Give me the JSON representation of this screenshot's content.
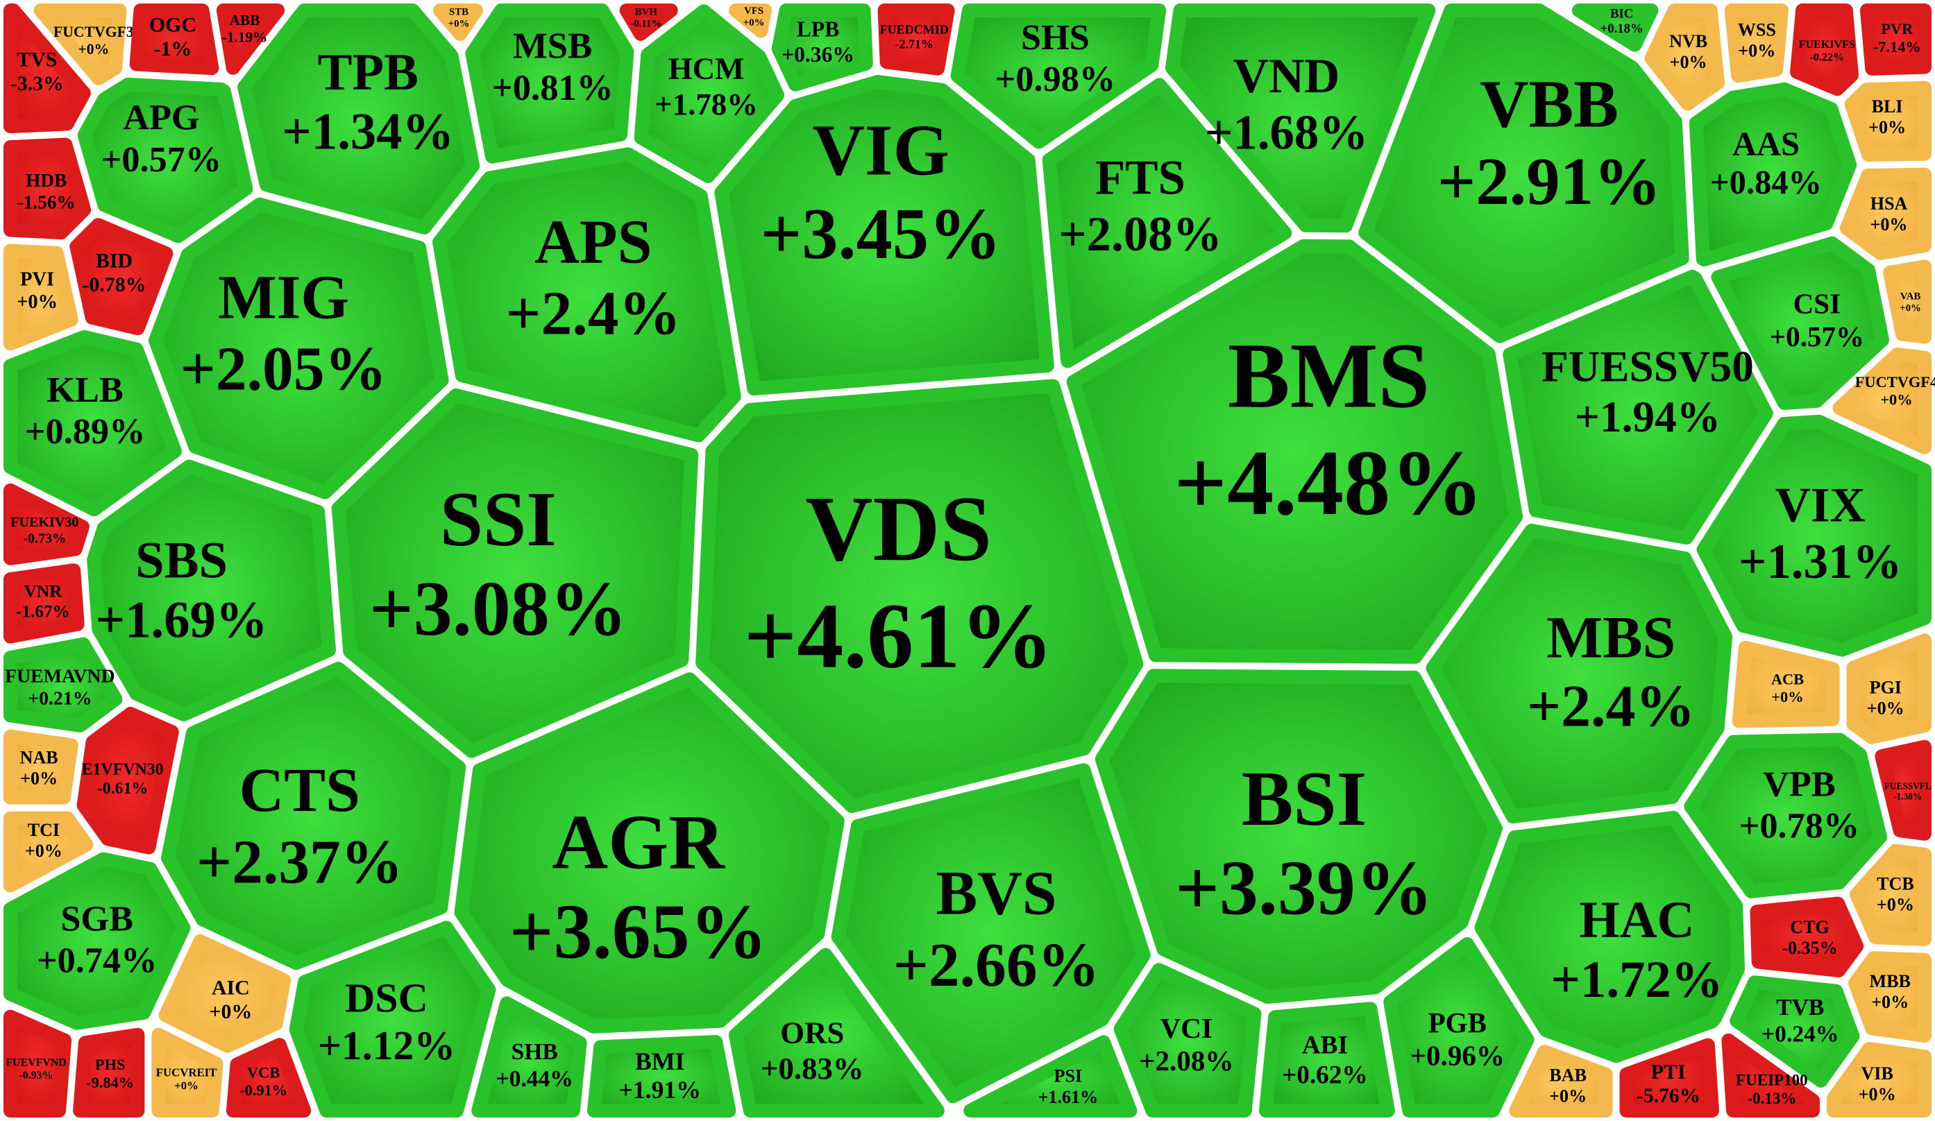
{
  "cells": [
    {
      "ticker": "VDS",
      "change": "+4.61%"
    },
    {
      "ticker": "BMS",
      "change": "+4.48%"
    },
    {
      "ticker": "SSI",
      "change": "+3.08%"
    },
    {
      "ticker": "AGR",
      "change": "+3.65%"
    },
    {
      "ticker": "VIG",
      "change": "+3.45%"
    },
    {
      "ticker": "BSI",
      "change": "+3.39%"
    },
    {
      "ticker": "APS",
      "change": "+2.4%"
    },
    {
      "ticker": "MIG",
      "change": "+2.05%"
    },
    {
      "ticker": "CTS",
      "change": "+2.37%"
    },
    {
      "ticker": "BVS",
      "change": "+2.66%"
    },
    {
      "ticker": "VBB",
      "change": "+2.91%"
    },
    {
      "ticker": "MBS",
      "change": "+2.4%"
    },
    {
      "ticker": "FTS",
      "change": "+2.08%"
    },
    {
      "ticker": "VND",
      "change": "+1.68%"
    },
    {
      "ticker": "TPB",
      "change": "+1.34%"
    },
    {
      "ticker": "SBS",
      "change": "+1.69%"
    },
    {
      "ticker": "FUESSV50",
      "change": "+1.94%"
    },
    {
      "ticker": "HAC",
      "change": "+1.72%"
    },
    {
      "ticker": "VIX",
      "change": "+1.31%"
    },
    {
      "ticker": "MSB",
      "change": "+0.81%"
    },
    {
      "ticker": "HCM",
      "change": "+1.78%"
    },
    {
      "ticker": "SHS",
      "change": "+0.98%"
    },
    {
      "ticker": "LPB",
      "change": "+0.36%"
    },
    {
      "ticker": "APG",
      "change": "+0.57%"
    },
    {
      "ticker": "KLB",
      "change": "+0.89%"
    },
    {
      "ticker": "SGB",
      "change": "+0.74%"
    },
    {
      "ticker": "DSC",
      "change": "+1.12%"
    },
    {
      "ticker": "ORS",
      "change": "+0.83%"
    },
    {
      "ticker": "BMI",
      "change": "+1.91%"
    },
    {
      "ticker": "SHB",
      "change": "+0.44%"
    },
    {
      "ticker": "VCI",
      "change": "+2.08%"
    },
    {
      "ticker": "ABI",
      "change": "+0.62%"
    },
    {
      "ticker": "PGB",
      "change": "+0.96%"
    },
    {
      "ticker": "AAS",
      "change": "+0.84%"
    },
    {
      "ticker": "CSI",
      "change": "+0.57%"
    },
    {
      "ticker": "VPB",
      "change": "+0.78%"
    },
    {
      "ticker": "TVB",
      "change": "+0.24%"
    },
    {
      "ticker": "PSI",
      "change": "+1.61%"
    },
    {
      "ticker": "TVS",
      "change": "-3.3%"
    },
    {
      "ticker": "FUCTVGF3",
      "change": "+0%"
    },
    {
      "ticker": "OGC",
      "change": "-1%"
    },
    {
      "ticker": "ABB",
      "change": "-1.19%"
    },
    {
      "ticker": "HDB",
      "change": "-1.56%"
    },
    {
      "ticker": "BID",
      "change": "-0.78%"
    },
    {
      "ticker": "PVI",
      "change": "+0%"
    },
    {
      "ticker": "FUEKIV30",
      "change": "-0.73%"
    },
    {
      "ticker": "VNR",
      "change": "-1.67%"
    },
    {
      "ticker": "FUEMAVND",
      "change": "+0.21%"
    },
    {
      "ticker": "NAB",
      "change": "+0%"
    },
    {
      "ticker": "E1VFVN30",
      "change": "-0.61%"
    },
    {
      "ticker": "TCI",
      "change": "+0%"
    },
    {
      "ticker": "AIC",
      "change": "+0%"
    },
    {
      "ticker": "FUEVFVND",
      "change": "-0.93%"
    },
    {
      "ticker": "PHS",
      "change": "-9.84%"
    },
    {
      "ticker": "FUCVREIT",
      "change": "+0%"
    },
    {
      "ticker": "VCB",
      "change": "-0.91%"
    },
    {
      "ticker": "NVB",
      "change": "+0%"
    },
    {
      "ticker": "WSS",
      "change": "+0%"
    },
    {
      "ticker": "FUEKIVFS",
      "change": "-0.22%"
    },
    {
      "ticker": "PVR",
      "change": "-7.14%"
    },
    {
      "ticker": "BLI",
      "change": "+0%"
    },
    {
      "ticker": "HSA",
      "change": "+0%"
    },
    {
      "ticker": "VAB",
      "change": "+0%"
    },
    {
      "ticker": "FUCTVGF4",
      "change": "+0%"
    },
    {
      "ticker": "ACB",
      "change": "+0%"
    },
    {
      "ticker": "PGI",
      "change": "+0%"
    },
    {
      "ticker": "FUESSVFL",
      "change": "-1.38%"
    },
    {
      "ticker": "TCB",
      "change": "+0%"
    },
    {
      "ticker": "CTG",
      "change": "-0.35%"
    },
    {
      "ticker": "MBB",
      "change": "+0%"
    },
    {
      "ticker": "VIB",
      "change": "+0%"
    },
    {
      "ticker": "BAB",
      "change": "+0%"
    },
    {
      "ticker": "PTI",
      "change": "-5.76%"
    },
    {
      "ticker": "FUEIP100",
      "change": "-0.13%"
    },
    {
      "ticker": "STB",
      "change": "+0%"
    },
    {
      "ticker": "BVH",
      "change": "-0.11%"
    },
    {
      "ticker": "VFS",
      "change": "+0%"
    },
    {
      "ticker": "FUEDCMID",
      "change": "-2.71%"
    },
    {
      "ticker": "BIC",
      "change": "+0.18%"
    }
  ]
}
